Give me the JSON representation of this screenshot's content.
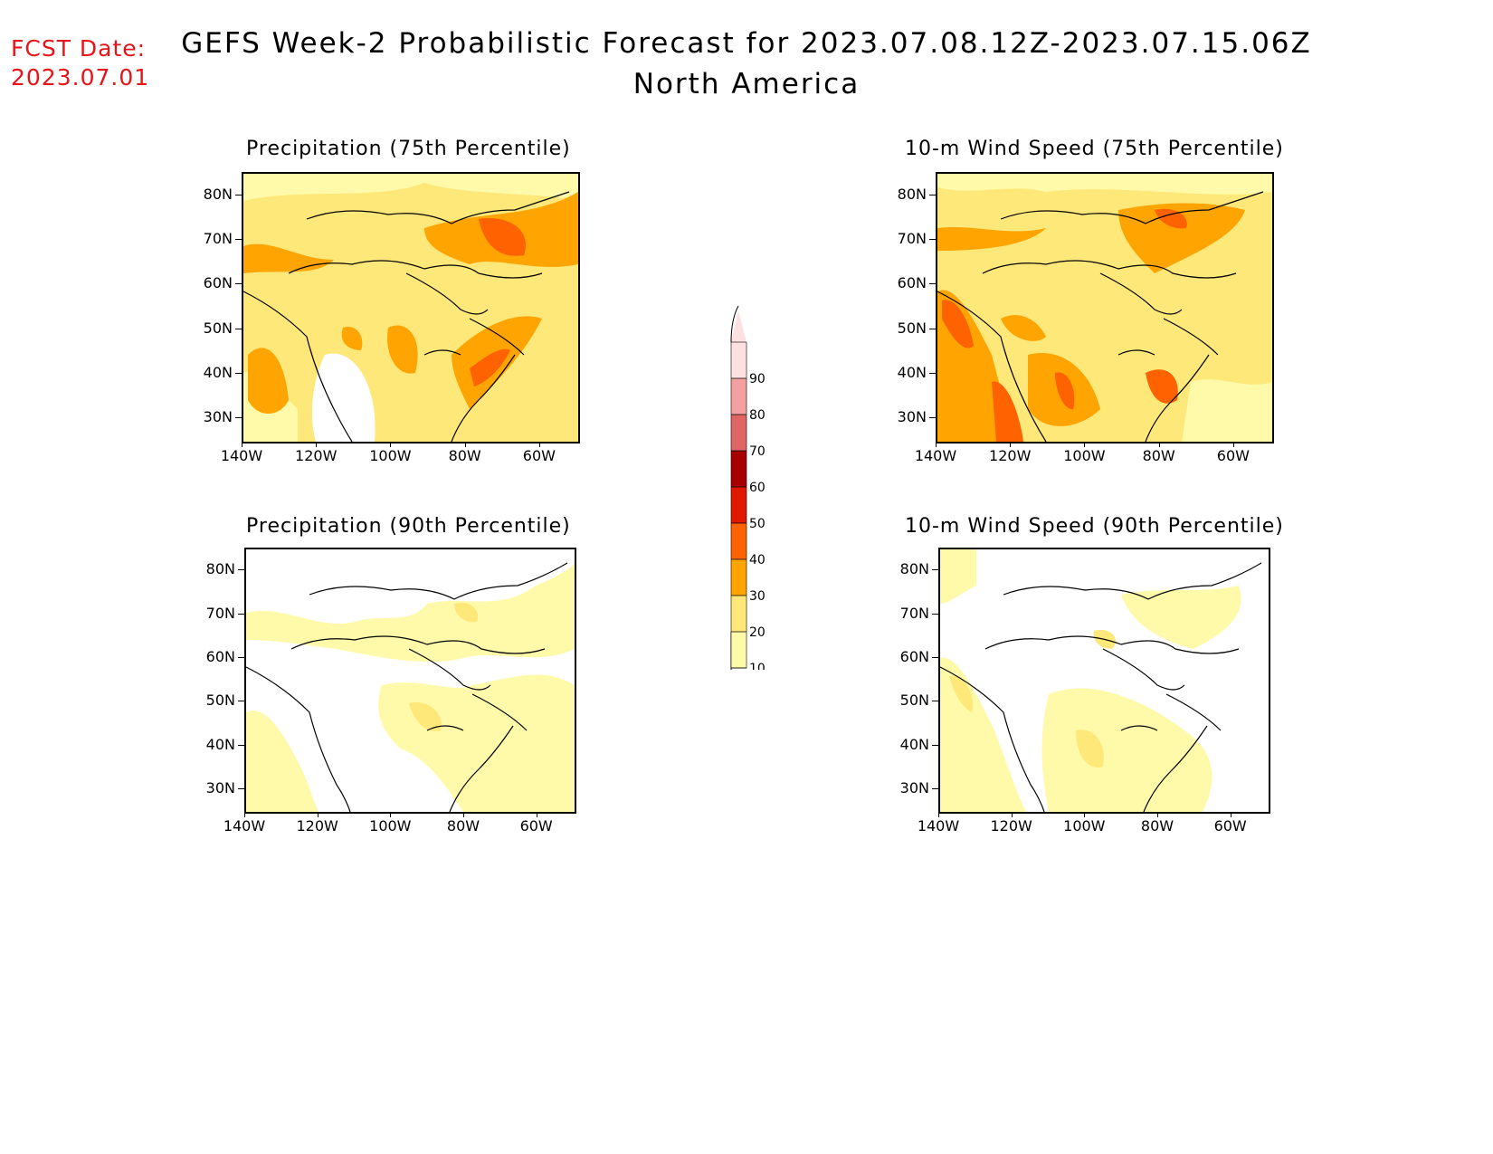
{
  "header": {
    "fcst_label": "FCST Date:",
    "fcst_date": "2023.07.01",
    "title": "GEFS Week-2 Probabilistic Forecast for 2023.07.08.12Z-2023.07.15.06Z",
    "subtitle": "North America"
  },
  "axes": {
    "lat_labels": [
      "80N",
      "70N",
      "60N",
      "50N",
      "40N",
      "30N"
    ],
    "lon_labels": [
      "140W",
      "120W",
      "100W",
      "80W",
      "60W"
    ],
    "lat_range": [
      25,
      85
    ],
    "lon_range": [
      -140,
      -50
    ]
  },
  "colorbar": {
    "levels": [
      "10",
      "20",
      "30",
      "40",
      "50",
      "60",
      "70",
      "80",
      "90"
    ],
    "colors": [
      "#fffaaa",
      "#ffe87a",
      "#ffa400",
      "#ff6200",
      "#e11800",
      "#a60000",
      "#e06666",
      "#f4a0a0",
      "#fde0e0"
    ]
  },
  "panels": [
    {
      "id": "precip75",
      "title": "Precipitation (75th Percentile)",
      "level": "75th"
    },
    {
      "id": "wind75",
      "title": "10-m Wind Speed (75th Percentile)",
      "level": "75th"
    },
    {
      "id": "precip90",
      "title": "Precipitation (90th Percentile)",
      "level": "90th"
    },
    {
      "id": "wind90",
      "title": "10-m Wind Speed (90th Percentile)",
      "level": "90th"
    }
  ]
}
